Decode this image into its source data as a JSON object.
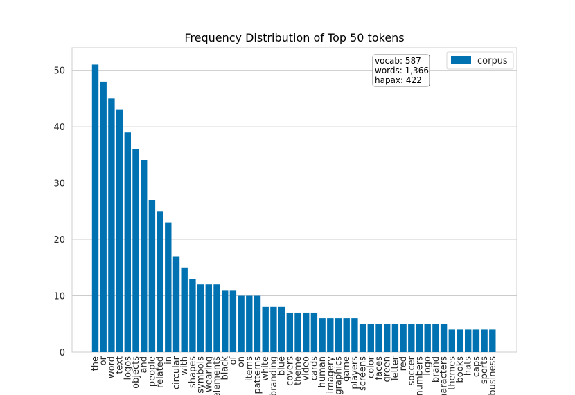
{
  "chart_data": {
    "type": "bar",
    "title": "Frequency Distribution of Top 50 tokens",
    "xlabel": "",
    "ylabel": "",
    "ylim": [
      0,
      54
    ],
    "yticks": [
      0,
      10,
      20,
      30,
      40,
      50
    ],
    "grid": true,
    "legend": {
      "position": "top-right",
      "entries": [
        "corpus"
      ]
    },
    "annotation": [
      "vocab: 587",
      "words: 1,366",
      "hapax: 422"
    ],
    "bar_color": "#0072B2",
    "categories": [
      "the",
      "or",
      "word",
      "text",
      "logos",
      "objects",
      "and",
      "people",
      "related",
      "in",
      "circular",
      "with",
      "shapes",
      "symbols",
      "wearing",
      "elements",
      "black",
      "of",
      "on",
      "items",
      "patterns",
      "white",
      "branding",
      "blue",
      "covers",
      "theme",
      "video",
      "cards",
      "human",
      "imagery",
      "graphics",
      "game",
      "players",
      "screens",
      "color",
      "faces",
      "green",
      "letter",
      "red",
      "soccer",
      "numbers",
      "logo",
      "brand",
      "characters",
      "themes",
      "books",
      "hats",
      "caps",
      "sports",
      "business"
    ],
    "series": [
      {
        "name": "corpus",
        "values": [
          51,
          48,
          45,
          43,
          39,
          36,
          34,
          27,
          25,
          23,
          17,
          15,
          13,
          12,
          12,
          12,
          11,
          11,
          10,
          10,
          10,
          8,
          8,
          8,
          7,
          7,
          7,
          7,
          6,
          6,
          6,
          6,
          6,
          5,
          5,
          5,
          5,
          5,
          5,
          5,
          5,
          5,
          5,
          5,
          4,
          4,
          4,
          4,
          4,
          4
        ]
      }
    ]
  }
}
